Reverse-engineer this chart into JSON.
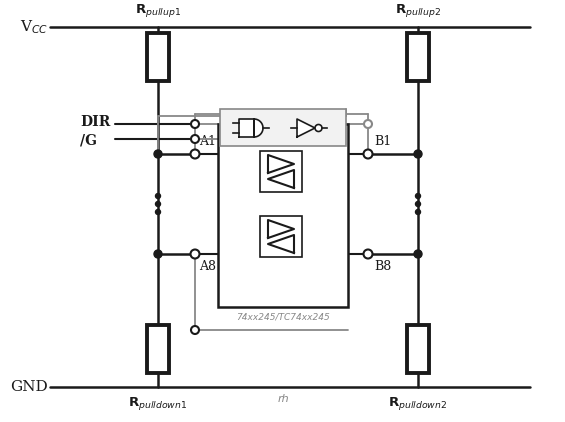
{
  "bg_color": "#ffffff",
  "line_color": "#1a1a1a",
  "gray_color": "#888888",
  "vcc_label": "V$_{CC}$",
  "gnd_label": "GND",
  "dir_label": "DIR",
  "g_label": "/G",
  "a1_label": "A1",
  "a8_label": "A8",
  "b1_label": "B1",
  "b8_label": "B8",
  "rpullup1_label": "R$_{pullup1}$",
  "rpullup2_label": "R$_{pullup2}$",
  "rpulldown1_label": "R$_{pulldown1}$",
  "rpulldown2_label": "R$_{pulldown2}$",
  "ic_label": "74xx245/TC74xx245",
  "gnd_sym": "rh",
  "figw": 5.65,
  "figh": 4.22,
  "dpi": 100
}
